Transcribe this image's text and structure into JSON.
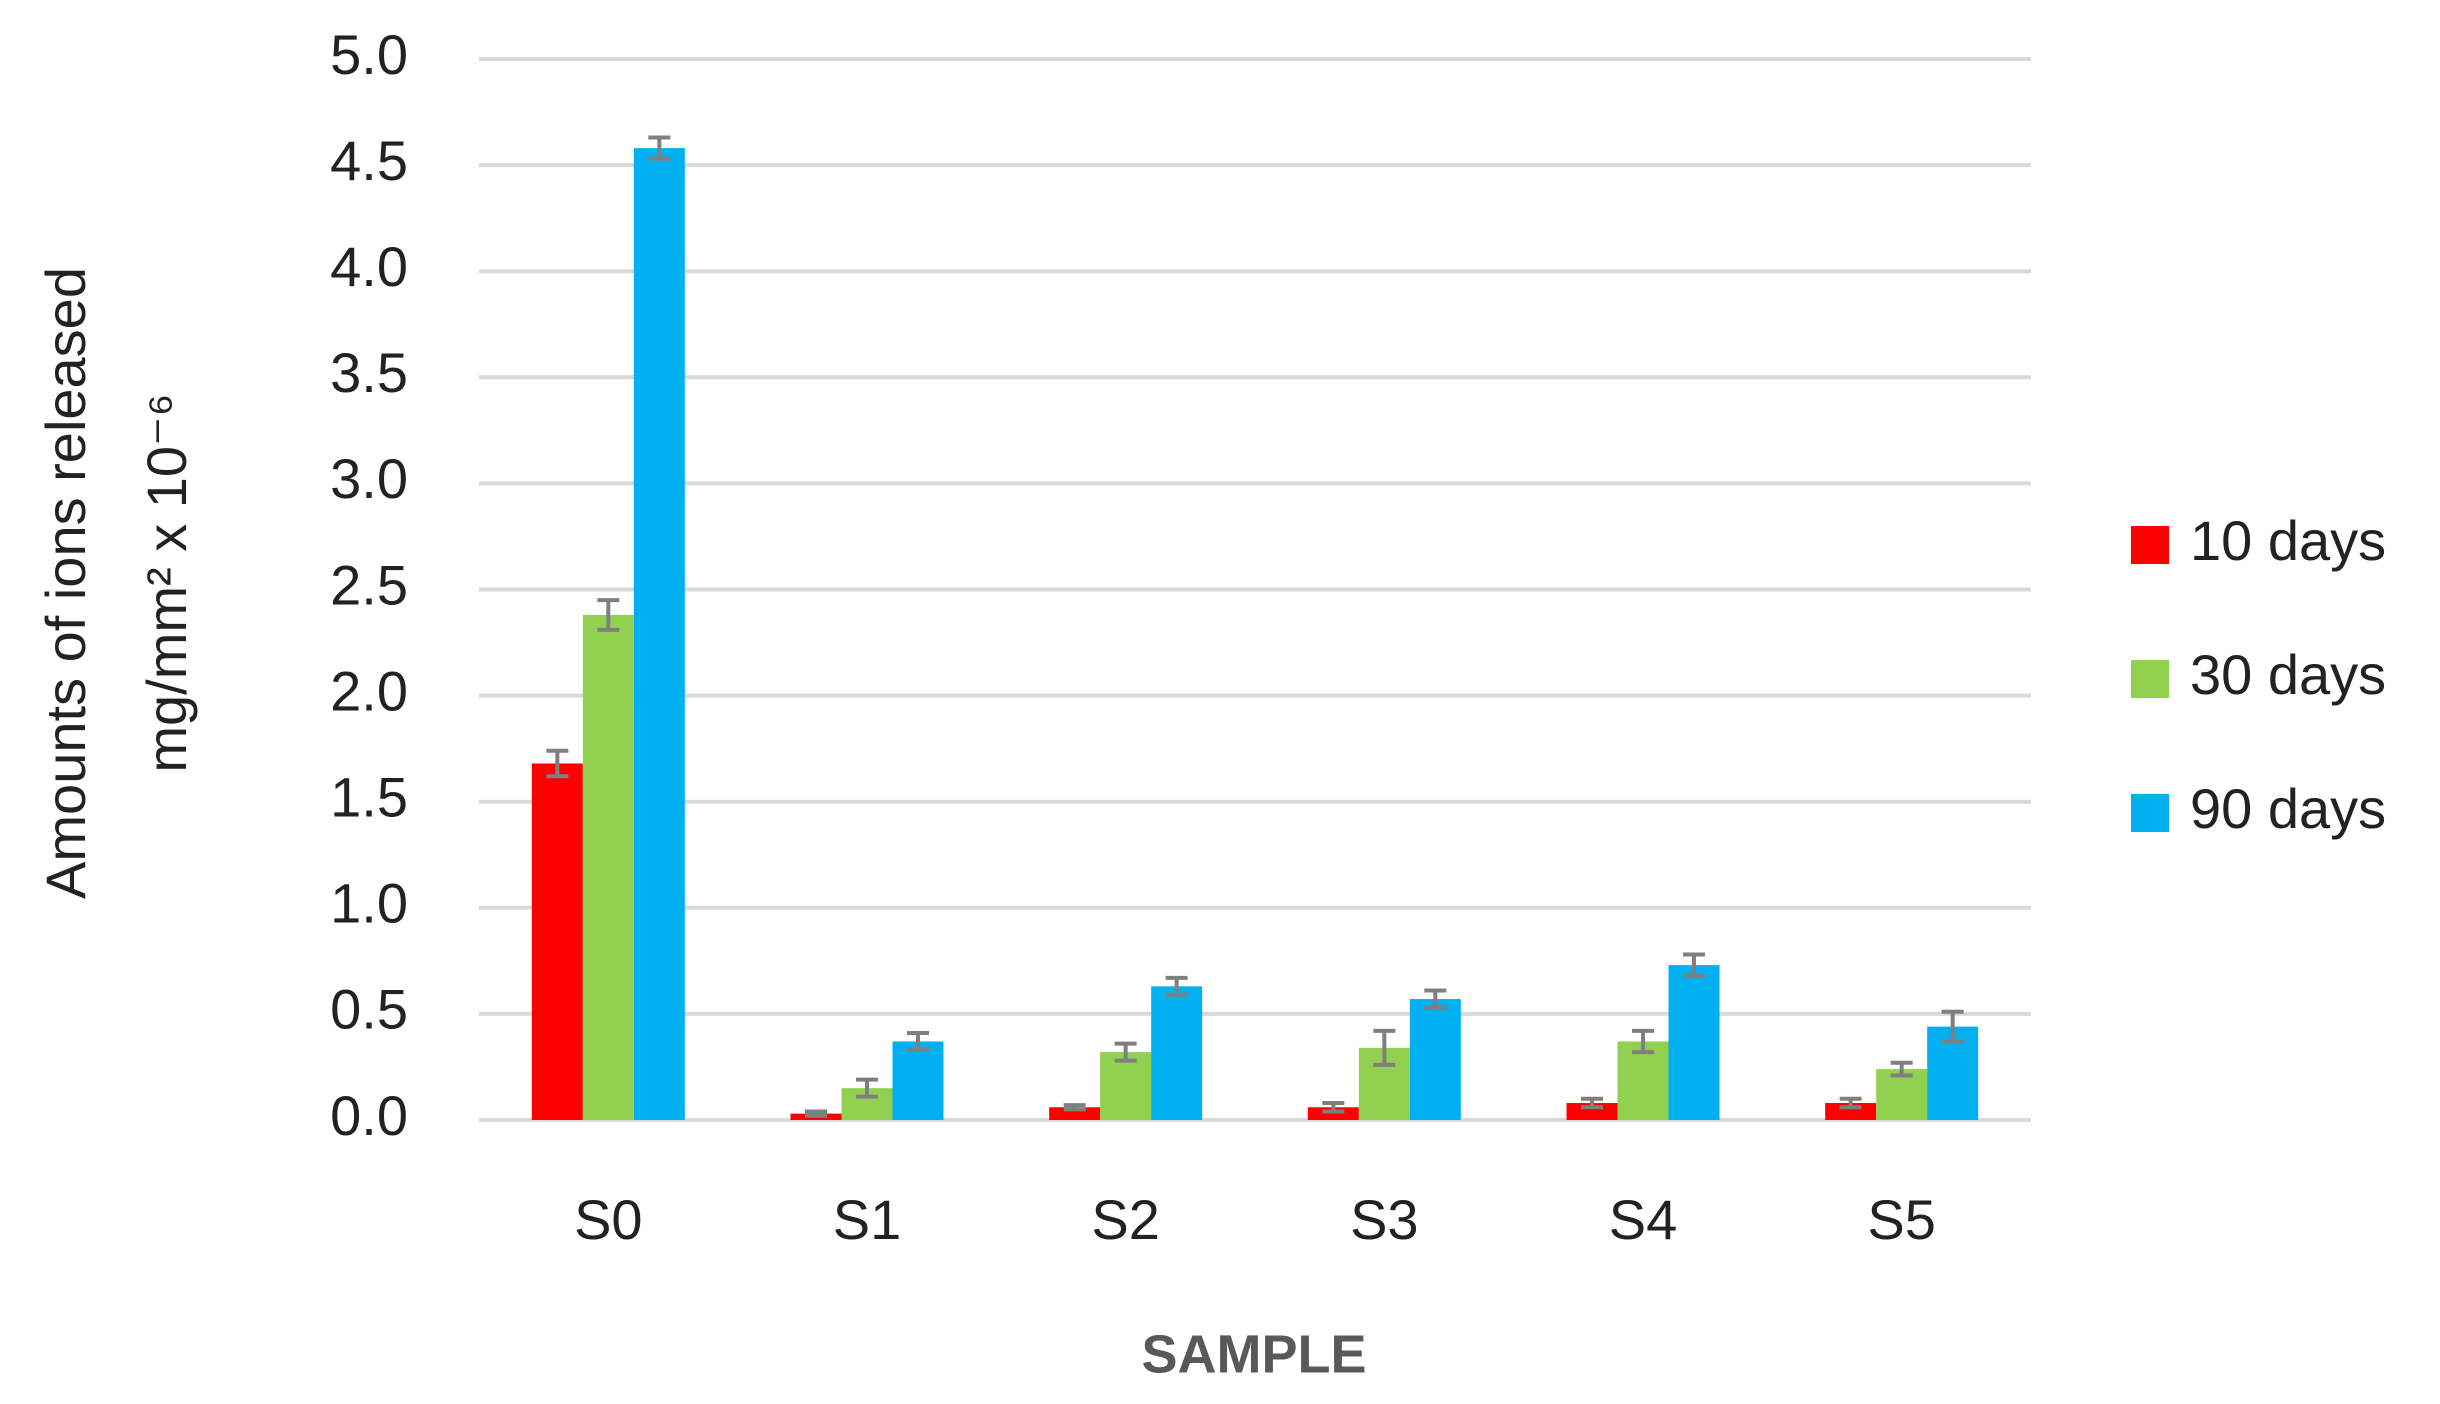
{
  "chart_data": {
    "type": "bar",
    "ylabel": [
      "Amounts of ions released",
      "mg/mm² x 10⁻⁶"
    ],
    "xlabel": "SAMPLE",
    "categories": [
      "S0",
      "S1",
      "S2",
      "S3",
      "S4",
      "S5"
    ],
    "series": [
      {
        "name": "10 days",
        "color": "#ff0000",
        "values": [
          1.68,
          0.03,
          0.06,
          0.06,
          0.08,
          0.08
        ],
        "errors": [
          0.06,
          0.01,
          0.01,
          0.02,
          0.02,
          0.02
        ]
      },
      {
        "name": "30 days",
        "color": "#92d050",
        "values": [
          2.38,
          0.15,
          0.32,
          0.34,
          0.37,
          0.24
        ],
        "errors": [
          0.07,
          0.04,
          0.04,
          0.08,
          0.05,
          0.03
        ]
      },
      {
        "name": "90 days",
        "color": "#00b0f0",
        "values": [
          4.58,
          0.37,
          0.63,
          0.57,
          0.73,
          0.44
        ],
        "errors": [
          0.05,
          0.04,
          0.04,
          0.04,
          0.05,
          0.07
        ]
      }
    ],
    "error_color": "#7f7f7f",
    "ylim": [
      0,
      5
    ],
    "yticks": [
      {
        "value": 0,
        "label": "0.0"
      },
      {
        "value": 0.5,
        "label": "0.5"
      },
      {
        "value": 1,
        "label": "1.0"
      },
      {
        "value": 1.5,
        "label": "1.5"
      },
      {
        "value": 2,
        "label": "2.0"
      },
      {
        "value": 2.5,
        "label": "2.5"
      },
      {
        "value": 3,
        "label": "3.0"
      },
      {
        "value": 3.5,
        "label": "3.5"
      },
      {
        "value": 4,
        "label": "4.0"
      },
      {
        "value": 4.5,
        "label": "4.5"
      },
      {
        "value": 5,
        "label": "5.0"
      }
    ],
    "grid": true,
    "legend": "right"
  }
}
